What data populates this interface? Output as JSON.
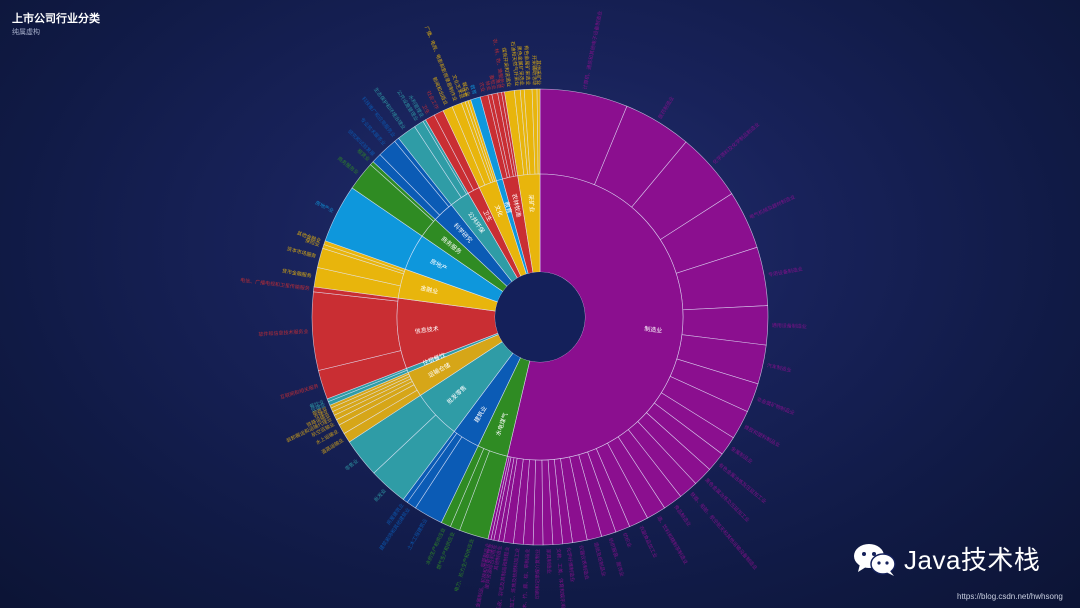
{
  "page": {
    "title": "上市公司行业分类",
    "subtitle": "纯属虚构",
    "watermark": "Java技术栈",
    "credit": "https://blog.csdn.net/hwhsong"
  },
  "colors": {
    "manufacturing": "#8b0f8f",
    "red": "#c92e33",
    "yellow": "#e8b50c",
    "blue": "#0e97dc",
    "green": "#2f8b23",
    "darkblue": "#0b5bb5",
    "teal": "#2f9ca6"
  },
  "chart_data": {
    "type": "sunburst",
    "title": "上市公司行业分类",
    "subtitle": "纯属虚构",
    "categories": [
      {
        "name": "制造业",
        "color": "#8b0f8f",
        "children": [
          {
            "name": "计算机、通信和其他电子设备制造业",
            "value": 9
          },
          {
            "name": "医药制造业",
            "value": 7
          },
          {
            "name": "化学原料及化学制品制造业",
            "value": 7
          },
          {
            "name": "电气机械及器材制造业",
            "value": 6
          },
          {
            "name": "专用设备制造业",
            "value": 6
          },
          {
            "name": "通用设备制造业",
            "value": 4
          },
          {
            "name": "汽车制造业",
            "value": 4
          },
          {
            "name": "非金属矿物制品业",
            "value": 3
          },
          {
            "name": "橡胶和塑料制品业",
            "value": 3
          },
          {
            "name": "金属制品业",
            "value": 2
          },
          {
            "name": "有色金属冶炼及压延加工业",
            "value": 2
          },
          {
            "name": "黑色金属冶炼及压延加工业",
            "value": 2
          },
          {
            "name": "铁路、船舶、航空航天和其他运输设备制造业",
            "value": 2
          },
          {
            "name": "食品制造业",
            "value": 2
          },
          {
            "name": "酒、饮料和精制茶制造业",
            "value": 2
          },
          {
            "name": "农副食品加工业",
            "value": 2
          },
          {
            "name": "纺织业",
            "value": 1.5
          },
          {
            "name": "纺织服装、服饰业",
            "value": 1.5
          },
          {
            "name": "造纸及纸制品业",
            "value": 1.5
          },
          {
            "name": "仪器仪表制造业",
            "value": 1.5
          },
          {
            "name": "化学纤维制造业",
            "value": 1
          },
          {
            "name": "文教、工美、体育和娱乐用品制造业",
            "value": 1
          },
          {
            "name": "家具制造业",
            "value": 1
          },
          {
            "name": "印刷和记录媒介复制业",
            "value": 1
          },
          {
            "name": "木材加工及木、竹、藤、棕、草制品业",
            "value": 1
          },
          {
            "name": "石油加工、炼焦及核燃料加工业",
            "value": 1
          },
          {
            "name": "皮革、毛皮、羽毛及其制品和制鞋业",
            "value": 1
          },
          {
            "name": "其他制造业",
            "value": 0.5
          },
          {
            "name": "废弃资源综合利用业",
            "value": 0.5
          },
          {
            "name": "金属制品、机械和设备修理业",
            "value": 0.3
          },
          {
            "name": "烟草制品业",
            "value": 0.3
          }
        ]
      },
      {
        "name": "水电煤气",
        "color": "#2f8b23",
        "children": [
          {
            "name": "电力、热力生产和供应业",
            "value": 3
          },
          {
            "name": "燃气生产和供应业",
            "value": 1
          },
          {
            "name": "水的生产和供应业",
            "value": 1
          }
        ]
      },
      {
        "name": "建筑业",
        "color": "#0b5bb5",
        "children": [
          {
            "name": "土木工程建筑业",
            "value": 3
          },
          {
            "name": "建筑装饰和其他建筑业",
            "value": 1
          },
          {
            "name": "房屋建筑业",
            "value": 0.5
          }
        ]
      },
      {
        "name": "批发零售",
        "color": "#2f9ca6",
        "children": [
          {
            "name": "批发业",
            "value": 4
          },
          {
            "name": "零售业",
            "value": 4
          }
        ]
      },
      {
        "name": "运输仓储",
        "color": "#d6a618",
        "children": [
          {
            "name": "道路运输业",
            "value": 1
          },
          {
            "name": "水上运输业",
            "value": 1
          },
          {
            "name": "航空运输业",
            "value": 0.6
          },
          {
            "name": "装卸搬运和运输代理业",
            "value": 0.5
          },
          {
            "name": "铁路运输业",
            "value": 0.4
          },
          {
            "name": "仓储业",
            "value": 0.4
          },
          {
            "name": "邮政业",
            "value": 0.3
          }
        ]
      },
      {
        "name": "住宿餐饮",
        "color": "#2f9ca6",
        "children": [
          {
            "name": "住宿业",
            "value": 0.4
          },
          {
            "name": "餐饮业",
            "value": 0.3
          }
        ]
      },
      {
        "name": "信息技术",
        "color": "#c92e33",
        "children": [
          {
            "name": "互联网和相关服务",
            "value": 3
          },
          {
            "name": "软件和信息技术服务业",
            "value": 8
          },
          {
            "name": "电信、广播电视和卫星传输服务",
            "value": 0.5
          }
        ]
      },
      {
        "name": "金融业",
        "color": "#e8b50c",
        "children": [
          {
            "name": "货币金融服务",
            "value": 2
          },
          {
            "name": "资本市场服务",
            "value": 2
          },
          {
            "name": "保险业",
            "value": 0.4
          },
          {
            "name": "其他金融业",
            "value": 0.4
          }
        ]
      },
      {
        "name": "房地产",
        "color": "#0e97dc",
        "children": [
          {
            "name": "房地产业",
            "value": 6
          }
        ]
      },
      {
        "name": "商务服务",
        "color": "#2f8b23",
        "children": [
          {
            "name": "商务服务业",
            "value": 3
          },
          {
            "name": "租赁业",
            "value": 0.4
          }
        ]
      },
      {
        "name": "科学研究",
        "color": "#0b5bb5",
        "children": [
          {
            "name": "研究和试验发展",
            "value": 1
          },
          {
            "name": "专业技术服务业",
            "value": 2
          },
          {
            "name": "科技推广和应用服务业",
            "value": 0.5
          }
        ]
      },
      {
        "name": "公共环保",
        "color": "#2f9ca6",
        "children": [
          {
            "name": "生态保护和环境治理业",
            "value": 2
          },
          {
            "name": "公共设施管理业",
            "value": 1
          },
          {
            "name": "水利管理业",
            "value": 0.3
          }
        ]
      },
      {
        "name": "卫生",
        "color": "#c92e33",
        "children": [
          {
            "name": "卫生",
            "value": 1
          },
          {
            "name": "社会工作",
            "value": 1
          }
        ]
      },
      {
        "name": "文化",
        "color": "#e8b50c",
        "children": [
          {
            "name": "新闻和出版业",
            "value": 1
          },
          {
            "name": "广播、电视、电影和影视录音制作业",
            "value": 1
          },
          {
            "name": "文化艺术业",
            "value": 0.4
          },
          {
            "name": "体育",
            "value": 0.3
          },
          {
            "name": "娱乐业",
            "value": 0.3
          }
        ]
      },
      {
        "name": "教育",
        "color": "#0e97dc",
        "children": [
          {
            "name": "教育",
            "value": 1
          }
        ]
      },
      {
        "name": "农林牧渔",
        "color": "#c92e33",
        "children": [
          {
            "name": "农业",
            "value": 0.8
          },
          {
            "name": "林业",
            "value": 0.4
          },
          {
            "name": "畜牧业",
            "value": 0.6
          },
          {
            "name": "渔业",
            "value": 0.4
          },
          {
            "name": "农、林、牧、渔服务业",
            "value": 0.3
          }
        ]
      },
      {
        "name": "采矿业",
        "color": "#e8b50c",
        "children": [
          {
            "name": "煤炭开采和洗选业",
            "value": 1
          },
          {
            "name": "石油和天然气开采业",
            "value": 0.6
          },
          {
            "name": "黑色金属矿采选业",
            "value": 0.4
          },
          {
            "name": "有色金属矿采选业",
            "value": 0.8
          },
          {
            "name": "开采辅助活动",
            "value": 0.5
          },
          {
            "name": "其他采矿业",
            "value": 0.3
          }
        ]
      }
    ]
  }
}
